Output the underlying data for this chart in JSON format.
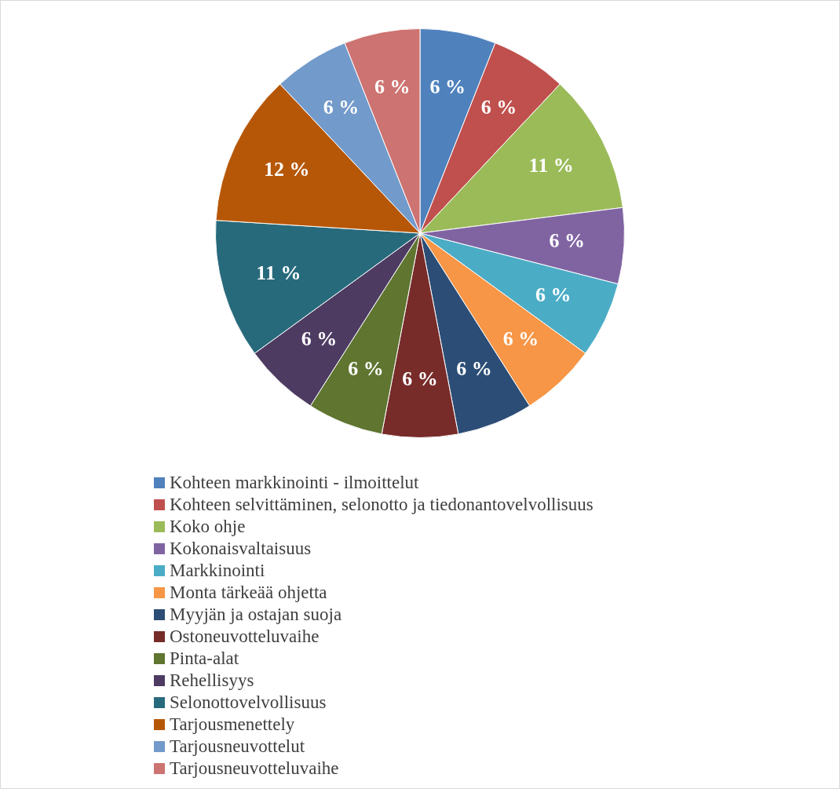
{
  "chart_data": {
    "type": "pie",
    "categories": [
      "Kohteen markkinointi - ilmoittelut",
      "Kohteen selvittäminen, selonotto ja tiedonantovelvollisuus",
      "Koko ohje",
      "Kokonaisvaltaisuus",
      "Markkinointi",
      "Monta tärkeää ohjetta",
      "Myyjän ja ostajan suoja",
      "Ostoneuvotteluvaihe",
      "Pinta-alat",
      "Rehellisyys",
      "Selonottovelvollisuus",
      "Tarjousmenettely",
      "Tarjousneuvottelut",
      "Tarjousneuvotteluvaihe"
    ],
    "values": [
      6,
      6,
      11,
      6,
      6,
      6,
      6,
      6,
      6,
      6,
      11,
      12,
      6,
      6
    ],
    "value_labels": [
      "6 %",
      "6 %",
      "11 %",
      "6 %",
      "6 %",
      "6 %",
      "6 %",
      "6 %",
      "6 %",
      "6 %",
      "11 %",
      "12 %",
      "6 %",
      "6 %"
    ],
    "colors": [
      "#4f81bd",
      "#c0504d",
      "#9bbb59",
      "#8064a2",
      "#4bacc6",
      "#f79646",
      "#2c4d75",
      "#772c2a",
      "#5f7530",
      "#4d3b62",
      "#276a7c",
      "#b65708",
      "#729aca",
      "#cd7371"
    ],
    "legend": "bottom"
  }
}
